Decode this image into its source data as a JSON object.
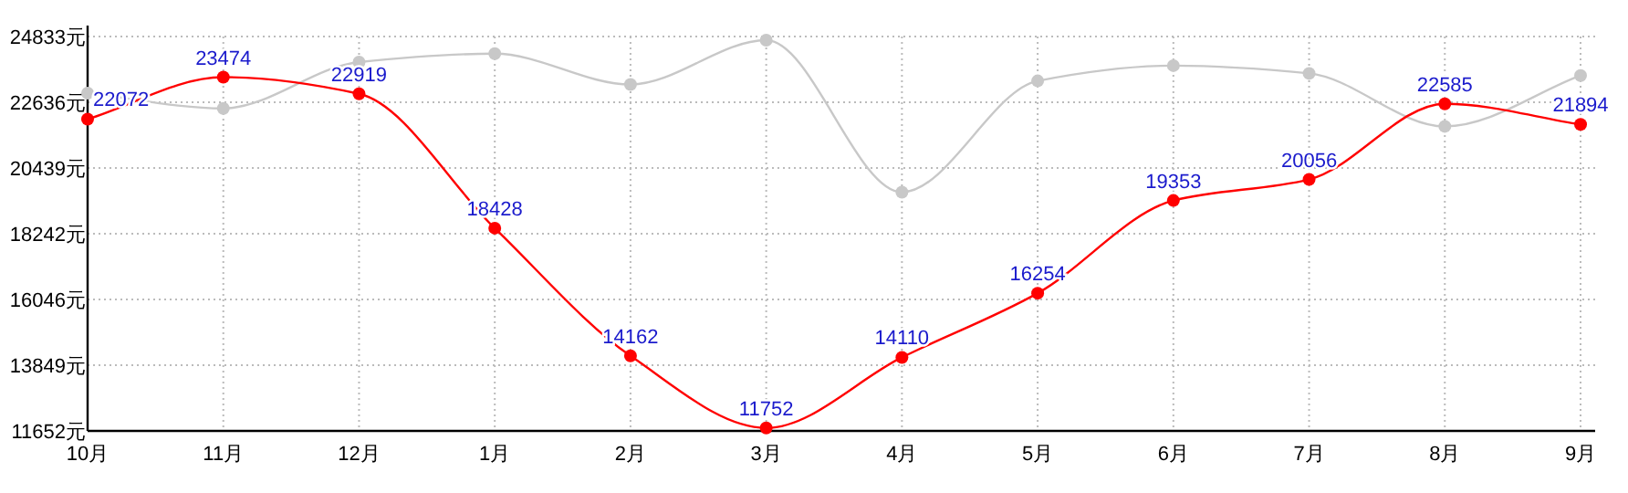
{
  "chart_data": {
    "type": "line",
    "categories": [
      "10月",
      "11月",
      "12月",
      "1月",
      "2月",
      "3月",
      "4月",
      "5月",
      "6月",
      "7月",
      "8月",
      "9月"
    ],
    "series": [
      {
        "color": "#c8c8c8",
        "values": [
          22940,
          22430,
          23980,
          24260,
          23230,
          24710,
          19630,
          23350,
          23860,
          23600,
          21830,
          23530
        ]
      },
      {
        "color": "#ff0000",
        "data_labels": true,
        "values": [
          22072,
          23474,
          22919,
          18428,
          14162,
          11752,
          14110,
          16254,
          19353,
          20056,
          22585,
          21894
        ]
      }
    ],
    "ylim": [
      11652,
      24833
    ],
    "yticks": [
      {
        "value": 11652,
        "label": "11652元"
      },
      {
        "value": 13849,
        "label": "13849元"
      },
      {
        "value": 16046,
        "label": "16046元"
      },
      {
        "value": 18242,
        "label": "18242元"
      },
      {
        "value": 20439,
        "label": "20439元"
      },
      {
        "value": 22636,
        "label": "22636元"
      },
      {
        "value": 24833,
        "label": "24833元"
      }
    ],
    "grid": true,
    "marker": "circle",
    "line_style": "solid"
  }
}
